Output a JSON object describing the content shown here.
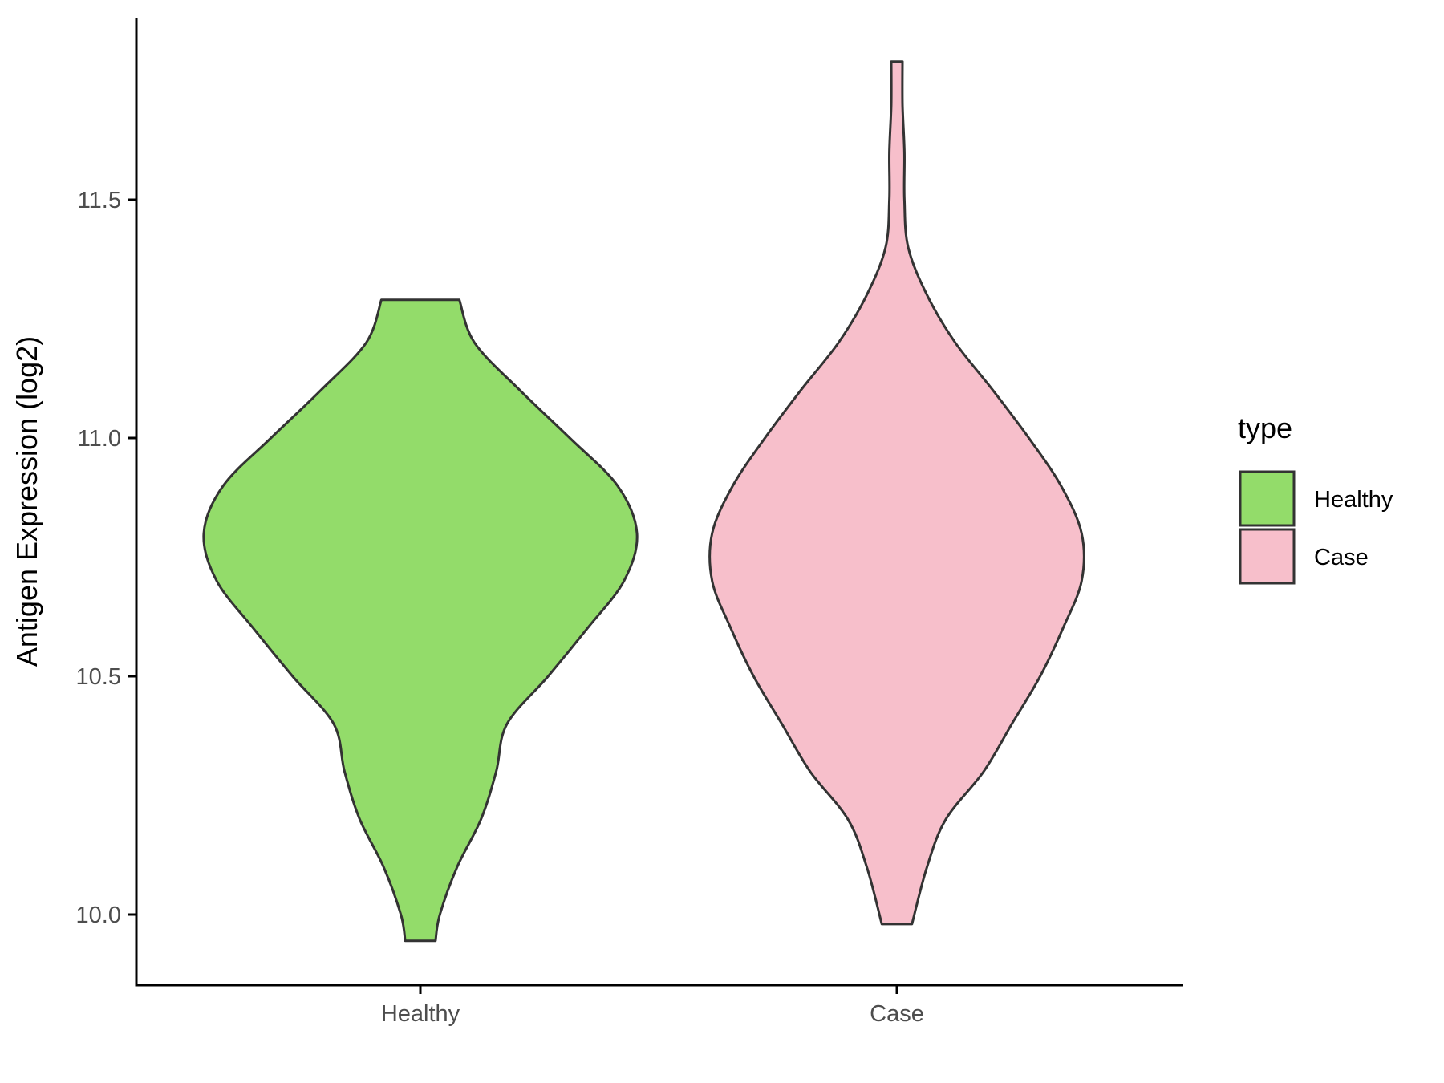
{
  "chart_data": {
    "type": "violin",
    "categories": [
      "Healthy",
      "Case"
    ],
    "ylabel": "Antigen Expression (log2)",
    "xlabel": "",
    "ylim": [
      9.86,
      11.86
    ],
    "yticks": [
      10.0,
      10.5,
      11.0,
      11.5
    ],
    "ytick_labels": [
      "10.0",
      "10.5",
      "11.0",
      "11.5"
    ],
    "grid": false,
    "legend": {
      "title": "type",
      "position": "right",
      "entries": [
        {
          "label": "Healthy",
          "color": "#93dc6a"
        },
        {
          "label": "Case",
          "color": "#f7bfcb"
        }
      ]
    },
    "series": [
      {
        "name": "Healthy",
        "color": "#93dc6a",
        "min": 9.945,
        "max": 11.29,
        "density_profile": [
          [
            9.945,
            0.07
          ],
          [
            10.0,
            0.09
          ],
          [
            10.1,
            0.17
          ],
          [
            10.2,
            0.28
          ],
          [
            10.3,
            0.35
          ],
          [
            10.4,
            0.4
          ],
          [
            10.5,
            0.59
          ],
          [
            10.6,
            0.77
          ],
          [
            10.7,
            0.94
          ],
          [
            10.8,
            1.0
          ],
          [
            10.9,
            0.91
          ],
          [
            11.0,
            0.69
          ],
          [
            11.1,
            0.46
          ],
          [
            11.2,
            0.25
          ],
          [
            11.29,
            0.18
          ]
        ]
      },
      {
        "name": "Case",
        "color": "#f7bfcb",
        "min": 9.98,
        "max": 11.79,
        "density_profile": [
          [
            9.98,
            0.08
          ],
          [
            10.1,
            0.16
          ],
          [
            10.2,
            0.26
          ],
          [
            10.3,
            0.46
          ],
          [
            10.4,
            0.61
          ],
          [
            10.5,
            0.76
          ],
          [
            10.6,
            0.88
          ],
          [
            10.7,
            0.98
          ],
          [
            10.8,
            0.98
          ],
          [
            10.9,
            0.87
          ],
          [
            11.0,
            0.7
          ],
          [
            11.1,
            0.51
          ],
          [
            11.2,
            0.31
          ],
          [
            11.3,
            0.16
          ],
          [
            11.4,
            0.06
          ],
          [
            11.5,
            0.04
          ],
          [
            11.6,
            0.04
          ],
          [
            11.7,
            0.03
          ],
          [
            11.79,
            0.03
          ]
        ]
      }
    ]
  }
}
